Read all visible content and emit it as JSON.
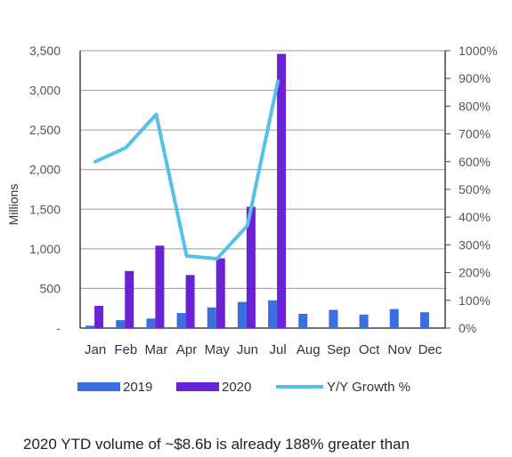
{
  "chart_data": {
    "type": "bar",
    "title": "",
    "ylabel": "Millions",
    "ylim": [
      0,
      3500
    ],
    "y_ticks": [
      "-",
      "500",
      "1,000",
      "1,500",
      "2,000",
      "2,500",
      "3,000",
      "3,500"
    ],
    "y2lim": [
      0,
      1000
    ],
    "y2_ticks": [
      "0%",
      "100%",
      "200%",
      "300%",
      "400%",
      "500%",
      "600%",
      "700%",
      "800%",
      "900%",
      "1000%"
    ],
    "categories": [
      "Jan",
      "Feb",
      "Mar",
      "Apr",
      "May",
      "Jun",
      "Jul",
      "Aug",
      "Sep",
      "Oct",
      "Nov",
      "Dec"
    ],
    "series": [
      {
        "name": "2019",
        "type": "bar",
        "color": "#3b6fe0",
        "values": [
          30,
          100,
          120,
          190,
          260,
          330,
          350,
          180,
          230,
          170,
          240,
          200
        ]
      },
      {
        "name": "2020",
        "type": "bar",
        "color": "#6b22d6",
        "values": [
          280,
          720,
          1040,
          670,
          880,
          1530,
          3460,
          null,
          null,
          null,
          null,
          null
        ]
      },
      {
        "name": "Y/Y Growth %",
        "type": "line",
        "axis": "right",
        "color": "#56c0ea",
        "values": [
          600,
          650,
          770,
          260,
          250,
          370,
          890,
          null,
          null,
          null,
          null,
          null
        ]
      }
    ],
    "grid": true,
    "legend": "bottom"
  },
  "footnote": "2020 YTD volume of ~$8.6b is already 188% greater than"
}
